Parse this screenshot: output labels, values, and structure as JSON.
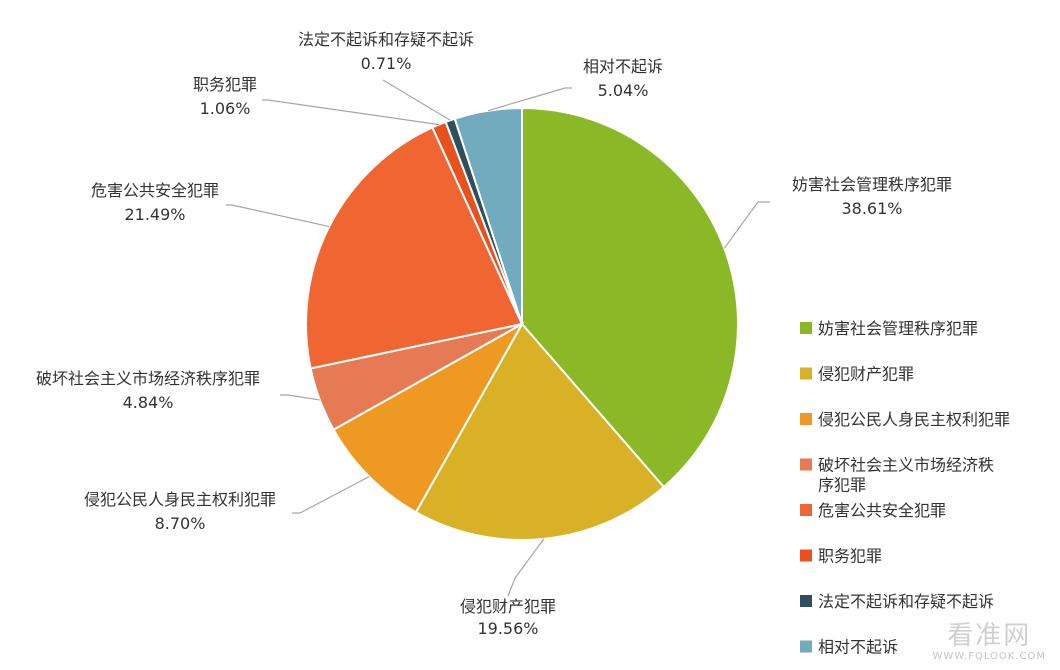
{
  "chart_data": {
    "type": "pie",
    "slices": [
      {
        "name": "妨害社会管理秩序犯罪",
        "value": 38.61,
        "label": "38.61%",
        "color": "#8ab826"
      },
      {
        "name": "侵犯财产犯罪",
        "value": 19.56,
        "label": "19.56%",
        "color": "#d9b127"
      },
      {
        "name": "侵犯公民人身民主权利犯罪",
        "value": 8.7,
        "label": "8.70%",
        "color": "#ee9a22"
      },
      {
        "name": "破坏社会主义市场经济秩序犯罪",
        "value": 4.84,
        "label": "4.84%",
        "color": "#e67a55"
      },
      {
        "name": "危害公共安全犯罪",
        "value": 21.49,
        "label": "21.49%",
        "color": "#ef6633"
      },
      {
        "name": "职务犯罪",
        "value": 1.06,
        "label": "1.06%",
        "color": "#e8501e"
      },
      {
        "name": "法定不起诉和存疑不起诉",
        "value": 0.71,
        "label": "0.71%",
        "color": "#2f4e5e"
      },
      {
        "name": "相对不起诉",
        "value": 5.04,
        "label": "5.04%",
        "color": "#72abbe"
      }
    ],
    "legend": {
      "placement": "right",
      "entries": [
        "妨害社会管理秩序犯罪",
        "侵犯财产犯罪",
        "侵犯公民人身民主权利犯罪",
        "破坏社会主义市场经济秩序犯罪",
        "危害公共安全犯罪",
        "职务犯罪",
        "法定不起诉和存疑不起诉",
        "相对不起诉"
      ]
    },
    "slice_border_color": "#ffffff",
    "leader_line_color": "#a6a6a6"
  },
  "watermark": {
    "text": "看准网",
    "url": "WWW.FQLOOK.COM"
  }
}
